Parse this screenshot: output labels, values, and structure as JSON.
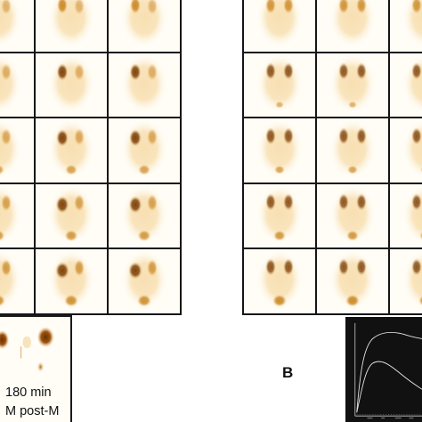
{
  "figure": {
    "left_panel": {
      "frame_caption_time": "180 min",
      "frame_caption_phase": "M  post-M"
    },
    "right_panel": {
      "label": "B"
    }
  },
  "colors": {
    "background": "#fffdf6",
    "tracer_light": "#f2c77a",
    "tracer_mid": "#c98622",
    "tracer_dark": "#7a3d05",
    "grid_border": "#151515",
    "curve_background": "#111111",
    "curve_line": "#e8e8e8"
  }
}
